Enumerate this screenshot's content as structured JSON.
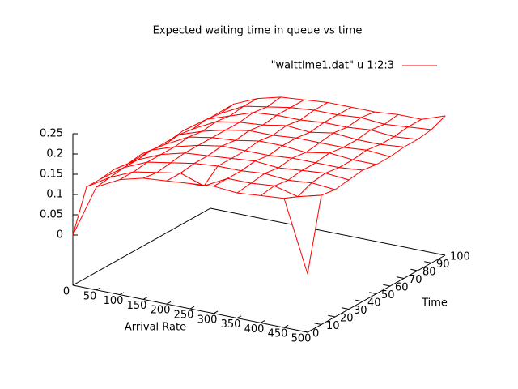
{
  "chart_data": {
    "type": "surface",
    "title": "Expected waiting time in queue vs time",
    "xlabel": "Arrival Rate",
    "ylabel": "Time",
    "series": [
      {
        "name": "\"waittime1.dat\" u 1:2:3",
        "color": "#ff0000",
        "x": [
          0,
          50,
          100,
          150,
          200,
          250,
          300,
          350,
          400,
          450,
          500
        ],
        "y": [
          0,
          10,
          20,
          30,
          40,
          50,
          60,
          70,
          80,
          90,
          100
        ],
        "z": [
          [
            0.0,
            0.13,
            0.16,
            0.175,
            0.18,
            0.185,
            0.19,
            0.185,
            0.19,
            0.195,
            0.02
          ],
          [
            0.1,
            0.135,
            0.16,
            0.17,
            0.18,
            0.16,
            0.19,
            0.19,
            0.195,
            0.18,
            0.195
          ],
          [
            0.1,
            0.14,
            0.165,
            0.175,
            0.185,
            0.19,
            0.19,
            0.195,
            0.19,
            0.195,
            0.19
          ],
          [
            0.105,
            0.14,
            0.165,
            0.18,
            0.185,
            0.19,
            0.195,
            0.19,
            0.195,
            0.2,
            0.195
          ],
          [
            0.1,
            0.145,
            0.165,
            0.18,
            0.19,
            0.19,
            0.19,
            0.195,
            0.195,
            0.195,
            0.2
          ],
          [
            0.105,
            0.14,
            0.17,
            0.18,
            0.185,
            0.195,
            0.195,
            0.19,
            0.2,
            0.195,
            0.195
          ],
          [
            0.1,
            0.145,
            0.165,
            0.18,
            0.19,
            0.19,
            0.195,
            0.195,
            0.195,
            0.2,
            0.195
          ],
          [
            0.1,
            0.14,
            0.17,
            0.18,
            0.185,
            0.195,
            0.19,
            0.2,
            0.195,
            0.195,
            0.2
          ],
          [
            0.105,
            0.145,
            0.165,
            0.185,
            0.19,
            0.19,
            0.195,
            0.195,
            0.2,
            0.195,
            0.2
          ],
          [
            0.1,
            0.14,
            0.17,
            0.18,
            0.19,
            0.195,
            0.195,
            0.2,
            0.195,
            0.2,
            0.205
          ],
          [
            0.1,
            0.145,
            0.17,
            0.185,
            0.19,
            0.195,
            0.195,
            0.195,
            0.2,
            0.2,
            0.22
          ]
        ]
      }
    ],
    "xlim": [
      0,
      500
    ],
    "ylim": [
      0,
      100
    ],
    "zlim": [
      0,
      0.25
    ],
    "xticks": [
      0,
      50,
      100,
      150,
      200,
      250,
      300,
      350,
      400,
      450,
      500
    ],
    "yticks": [
      0,
      10,
      20,
      30,
      40,
      50,
      60,
      70,
      80,
      90,
      100
    ],
    "zticks": [
      0,
      0.05,
      0.1,
      0.15,
      0.2,
      0.25
    ]
  }
}
